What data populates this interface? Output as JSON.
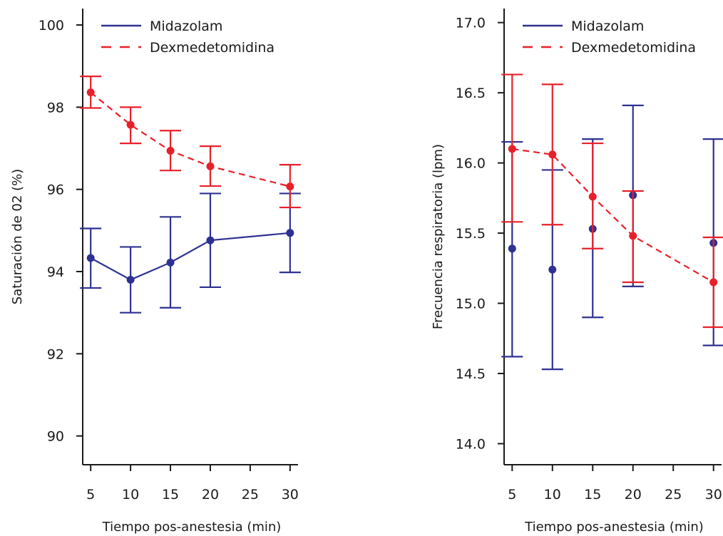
{
  "chart_data": [
    {
      "type": "line",
      "xlabel": "Tiempo pos-anestesia (min)",
      "ylabel": "Saturación de 02 (%)",
      "xlim": [
        4,
        31
      ],
      "ylim": [
        89.3,
        100.4
      ],
      "x_ticks": [
        5,
        10,
        15,
        20,
        25,
        30
      ],
      "y_ticks": [
        90,
        92,
        94,
        96,
        98,
        100
      ],
      "y_tick_labels": [
        "90",
        "92",
        "94",
        "96",
        "98",
        "100"
      ],
      "legend_position": "top-left",
      "series": [
        {
          "name": "Midazolam",
          "color": "#2e3192",
          "dash": "solid",
          "x": [
            5,
            10,
            15,
            20,
            30
          ],
          "y": [
            94.33,
            93.8,
            94.22,
            94.76,
            94.94
          ],
          "err_low": [
            93.6,
            93.0,
            93.12,
            93.62,
            93.98
          ],
          "err_high": [
            95.05,
            94.6,
            95.33,
            95.9,
            95.9
          ]
        },
        {
          "name": "Dexmedetomidina",
          "color": "#e8202a",
          "dash": "dashed",
          "x": [
            5,
            10,
            15,
            20,
            30
          ],
          "y": [
            98.36,
            97.57,
            96.94,
            96.56,
            96.07
          ],
          "err_low": [
            97.98,
            97.12,
            96.46,
            96.08,
            95.56
          ],
          "err_high": [
            98.75,
            98.0,
            97.43,
            97.05,
            96.6
          ]
        }
      ]
    },
    {
      "type": "line",
      "xlabel": "Tiempo pos-anestesia (min)",
      "ylabel": "Frecuencia respiratoria (lpm)",
      "xlim": [
        4,
        31
      ],
      "ylim": [
        13.85,
        17.1
      ],
      "x_ticks": [
        5,
        10,
        15,
        20,
        25,
        30
      ],
      "y_ticks": [
        14.0,
        14.5,
        15.0,
        15.5,
        16.0,
        16.5,
        17.0
      ],
      "y_tick_labels": [
        "14.0",
        "14.5",
        "15.0",
        "15.5",
        "16.0",
        "16.5",
        "17.0"
      ],
      "legend_position": "top-left",
      "series": [
        {
          "name": "Midazolam",
          "color": "#2e3192",
          "dash": "none",
          "x": [
            5,
            10,
            15,
            20,
            30
          ],
          "y": [
            15.39,
            15.24,
            15.53,
            15.77,
            15.43
          ],
          "err_low": [
            14.62,
            14.53,
            14.9,
            15.12,
            14.7
          ],
          "err_high": [
            16.15,
            15.95,
            16.17,
            16.41,
            16.17
          ]
        },
        {
          "name": "Dexmedetomidina",
          "color": "#e8202a",
          "dash": "dashed",
          "x": [
            5,
            10,
            15,
            20,
            30
          ],
          "y": [
            16.1,
            16.06,
            15.76,
            15.48,
            15.15
          ],
          "err_low": [
            15.58,
            15.56,
            15.39,
            15.15,
            14.83
          ],
          "err_high": [
            16.63,
            16.56,
            16.14,
            15.8,
            15.47
          ]
        }
      ]
    }
  ]
}
